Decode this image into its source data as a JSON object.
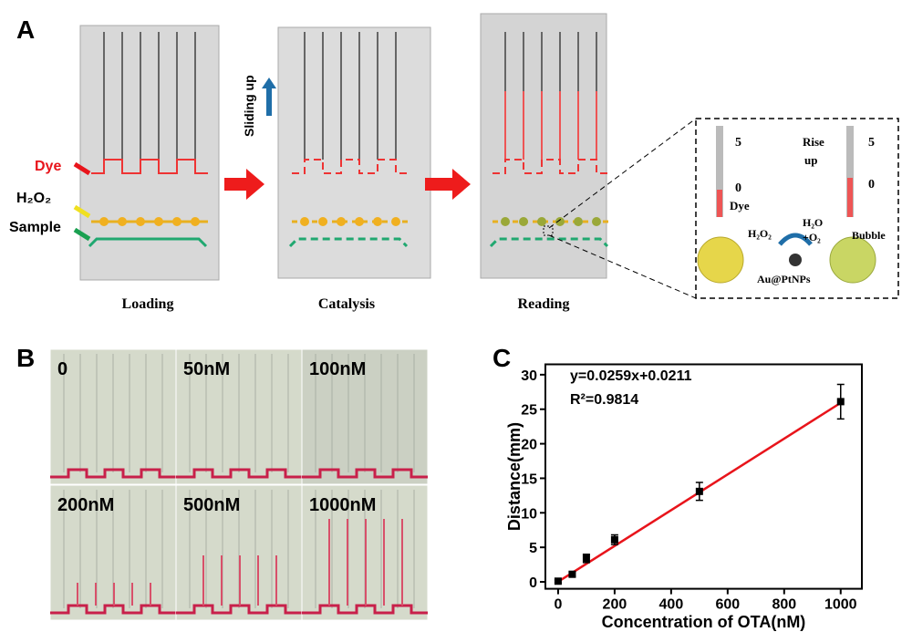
{
  "panel_a": {
    "letter": "A",
    "dye": "Dye",
    "h2o2": "H₂O₂",
    "sample": "Sample",
    "sliding": "Sliding up",
    "steps": [
      "Loading",
      "Catalysis",
      "Reading"
    ],
    "inset": {
      "tick_top_left": "5",
      "tick_bottom_left": "0",
      "dye": "Dye",
      "rise": "Rise",
      "up": "up",
      "tick_top_right": "5",
      "tick_bottom_right": "0",
      "h2o2": "H₂O₂",
      "h2o": "H₂O",
      "o2": "+O₂",
      "catalyst": "Au@PtNPs",
      "bubble": "Bubble"
    }
  },
  "panel_b": {
    "letter": "B",
    "labels": [
      "0",
      "50nM",
      "100nM",
      "200nM",
      "500nM",
      "1000nM"
    ]
  },
  "chart_data": {
    "type": "scatter",
    "letter": "C",
    "x_label": "Concentration of OTA(nM)",
    "y_label": "Distance(mm)",
    "equation": "y=0.0259x+0.0211",
    "r_squared": "R²=0.9814",
    "x": [
      0,
      50,
      100,
      200,
      500,
      1000
    ],
    "values": [
      0.1,
      1.1,
      3.4,
      6.1,
      13.1,
      26.1
    ],
    "errors": [
      0.2,
      0.3,
      0.6,
      0.7,
      1.3,
      2.5
    ],
    "color": "#000000",
    "fit": {
      "color": "#e8141b",
      "x": [
        0,
        1000
      ],
      "y": [
        0.0211,
        25.9211
      ]
    },
    "xlim": [
      -45,
      1075
    ],
    "ylim": [
      -1,
      31.5
    ],
    "xticks": [
      0,
      200,
      400,
      600,
      800,
      1000
    ],
    "yticks": [
      0,
      5,
      10,
      15,
      20,
      25,
      30
    ]
  }
}
